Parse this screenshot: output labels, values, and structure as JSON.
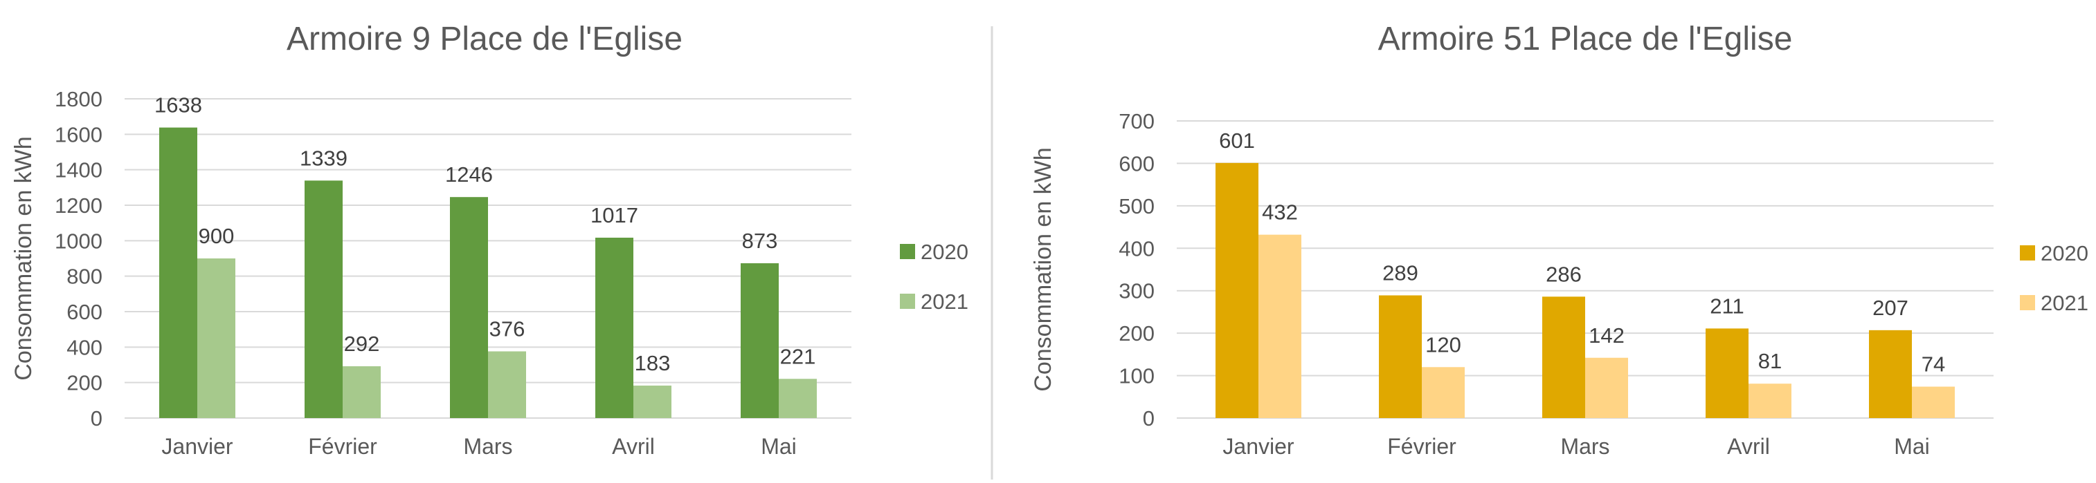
{
  "chart_data": [
    {
      "type": "bar",
      "title": "Armoire 9 Place de l'Eglise",
      "ylabel": "Consommation en kWh",
      "xlabel": "",
      "categories": [
        "Janvier",
        "Février",
        "Mars",
        "Avril",
        "Mai"
      ],
      "series": [
        {
          "name": "2020",
          "values": [
            1638,
            1339,
            1246,
            1017,
            873
          ],
          "color": "#629b3f"
        },
        {
          "name": "2021",
          "values": [
            900,
            292,
            376,
            183,
            221
          ],
          "color": "#a6c98c"
        }
      ],
      "ylim": [
        0,
        1800
      ],
      "yticks": [
        0,
        200,
        400,
        600,
        800,
        1000,
        1200,
        1400,
        1600,
        1800
      ],
      "grid": true,
      "legend": "right",
      "data_labels": true
    },
    {
      "type": "bar",
      "title": "Armoire 51 Place de l'Eglise",
      "ylabel": "Consommation en kWh",
      "xlabel": "",
      "categories": [
        "Janvier",
        "Février",
        "Mars",
        "Avril",
        "Mai"
      ],
      "series": [
        {
          "name": "2020",
          "values": [
            601,
            289,
            286,
            211,
            207
          ],
          "color": "#e0a800"
        },
        {
          "name": "2021",
          "values": [
            432,
            120,
            142,
            81,
            74
          ],
          "color": "#ffd485"
        }
      ],
      "ylim": [
        0,
        700
      ],
      "yticks": [
        0,
        100,
        200,
        300,
        400,
        500,
        600,
        700
      ],
      "grid": true,
      "legend": "right",
      "data_labels": true
    }
  ]
}
